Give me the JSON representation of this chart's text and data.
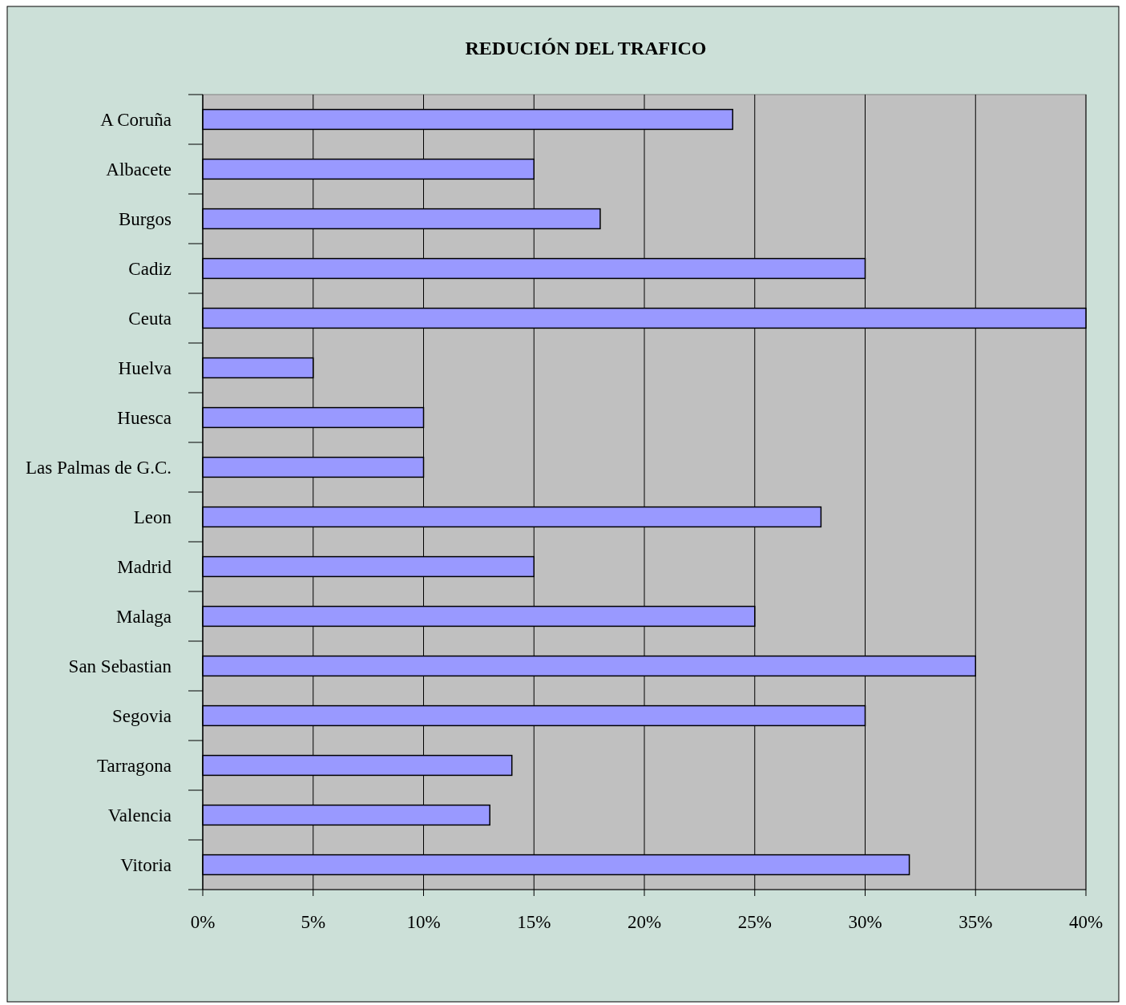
{
  "chart_data": {
    "type": "bar",
    "orientation": "horizontal",
    "title": "REDUCIÓN DEL TRAFICO",
    "categories": [
      "A Coruña",
      "Albacete",
      "Burgos",
      "Cadiz",
      "Ceuta",
      "Huelva",
      "Huesca",
      "Las Palmas de G.C.",
      "Leon",
      "Madrid",
      "Malaga",
      "San Sebastian",
      "Segovia",
      "Tarragona",
      "Valencia",
      "Vitoria"
    ],
    "values": [
      24,
      15,
      18,
      30,
      40,
      5,
      10,
      10,
      28,
      15,
      25,
      35,
      30,
      14,
      13,
      32
    ],
    "color": "#9999ff",
    "xlim": [
      0,
      40
    ],
    "xticks": [
      {
        "value": 0,
        "label": "0%"
      },
      {
        "value": 5,
        "label": "5%"
      },
      {
        "value": 10,
        "label": "10%"
      },
      {
        "value": 15,
        "label": "15%"
      },
      {
        "value": 20,
        "label": "20%"
      },
      {
        "value": 25,
        "label": "25%"
      },
      {
        "value": 30,
        "label": "30%"
      },
      {
        "value": 35,
        "label": "35%"
      },
      {
        "value": 40,
        "label": "40%"
      }
    ],
    "grid": "x"
  }
}
